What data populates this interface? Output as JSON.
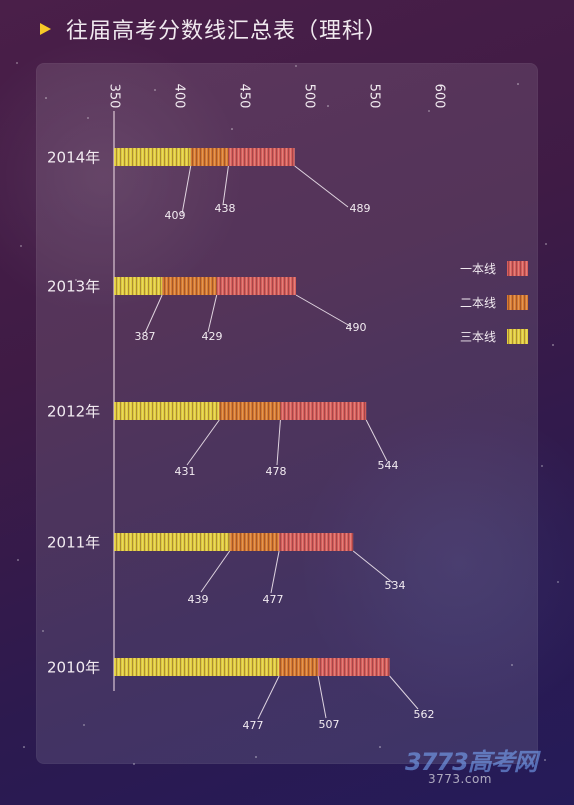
{
  "title": "往届高考分数线汇总表（理科）",
  "colors": {
    "first_line": "#d95f5d",
    "second_line": "#d97b2f",
    "third_line": "#e3cf3d",
    "axis": "#f2dfe8",
    "label_text": "#f2ebf1"
  },
  "chart_data": {
    "type": "bar",
    "x": [
      "2014年",
      "2013年",
      "2012年",
      "2011年",
      "2010年"
    ],
    "series": [
      {
        "name": "一本线",
        "values": [
          489,
          490,
          544,
          534,
          562
        ]
      },
      {
        "name": "二本线",
        "values": [
          438,
          429,
          478,
          477,
          507
        ]
      },
      {
        "name": "三本线",
        "values": [
          409,
          387,
          431,
          439,
          477
        ]
      }
    ],
    "ticks": [
      350,
      400,
      450,
      500,
      550,
      600
    ],
    "xlim": [
      350,
      600
    ],
    "legend": "right"
  },
  "watermark": {
    "main": "3773高考网",
    "sub": "3773.com"
  }
}
